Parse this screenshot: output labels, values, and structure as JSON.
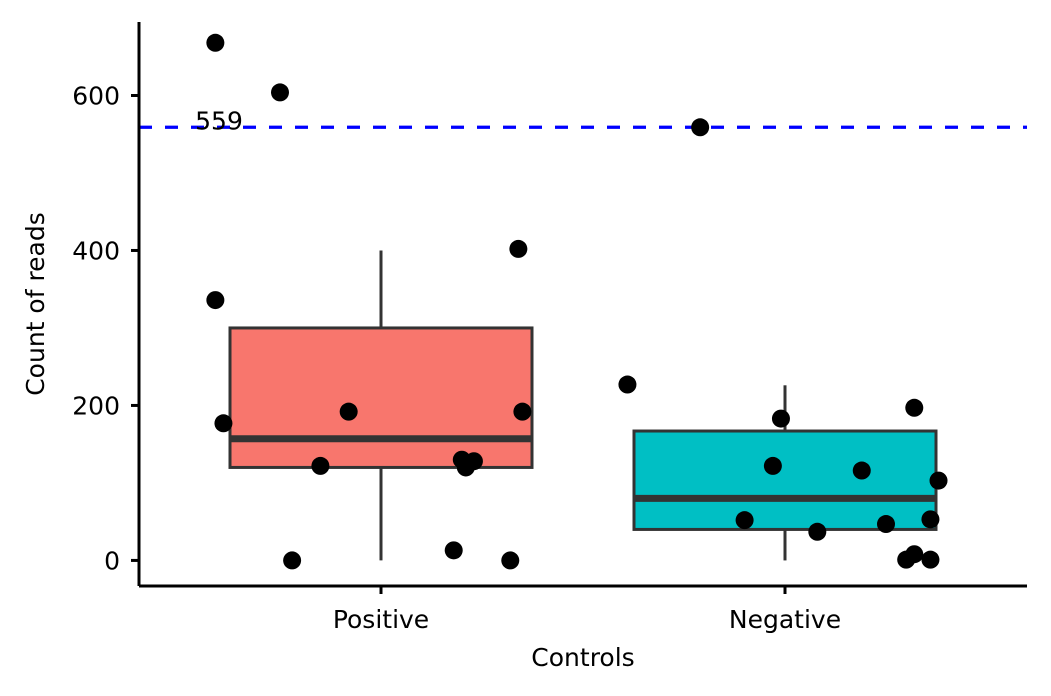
{
  "chart_data": {
    "type": "box",
    "xlabel": "Controls",
    "ylabel": "Count of reads",
    "categories": [
      "Positive",
      "Negative"
    ],
    "ylim": [
      -33,
      700
    ],
    "yticks": [
      0,
      200,
      400,
      600
    ],
    "y_tick_labels": [
      "0",
      "200",
      "400",
      "600"
    ],
    "legend": "none",
    "grid": false,
    "boxes": [
      {
        "category": "Positive",
        "fill": "#F8766D",
        "whisker_low": 0,
        "q1": 120,
        "median": 157,
        "q3": 300,
        "whisker_high": 400
      },
      {
        "category": "Negative",
        "fill": "#00BFC4",
        "whisker_low": 0,
        "q1": 40,
        "median": 80,
        "q3": 167,
        "whisker_high": 226
      }
    ],
    "points": [
      {
        "category": "Positive",
        "jitter": -0.41,
        "y": 668
      },
      {
        "category": "Positive",
        "jitter": -0.25,
        "y": 604
      },
      {
        "category": "Positive",
        "jitter": 0.34,
        "y": 402
      },
      {
        "category": "Positive",
        "jitter": -0.41,
        "y": 336
      },
      {
        "category": "Positive",
        "jitter": -0.08,
        "y": 192
      },
      {
        "category": "Positive",
        "jitter": 0.35,
        "y": 192
      },
      {
        "category": "Positive",
        "jitter": -0.39,
        "y": 177
      },
      {
        "category": "Positive",
        "jitter": 0.2,
        "y": 130
      },
      {
        "category": "Positive",
        "jitter": 0.23,
        "y": 128
      },
      {
        "category": "Positive",
        "jitter": 0.21,
        "y": 120
      },
      {
        "category": "Positive",
        "jitter": -0.15,
        "y": 122
      },
      {
        "category": "Positive",
        "jitter": 0.18,
        "y": 13
      },
      {
        "category": "Positive",
        "jitter": -0.22,
        "y": 0
      },
      {
        "category": "Positive",
        "jitter": 0.32,
        "y": 0
      },
      {
        "category": "Negative",
        "jitter": -0.21,
        "y": 559
      },
      {
        "category": "Negative",
        "jitter": -0.39,
        "y": 227
      },
      {
        "category": "Negative",
        "jitter": 0.32,
        "y": 197
      },
      {
        "category": "Negative",
        "jitter": -0.01,
        "y": 183
      },
      {
        "category": "Negative",
        "jitter": -0.03,
        "y": 122
      },
      {
        "category": "Negative",
        "jitter": 0.19,
        "y": 116
      },
      {
        "category": "Negative",
        "jitter": 0.38,
        "y": 103
      },
      {
        "category": "Negative",
        "jitter": -0.1,
        "y": 52
      },
      {
        "category": "Negative",
        "jitter": 0.36,
        "y": 53
      },
      {
        "category": "Negative",
        "jitter": 0.25,
        "y": 47
      },
      {
        "category": "Negative",
        "jitter": 0.08,
        "y": 37
      },
      {
        "category": "Negative",
        "jitter": 0.32,
        "y": 8
      },
      {
        "category": "Negative",
        "jitter": 0.3,
        "y": 1
      },
      {
        "category": "Negative",
        "jitter": 0.36,
        "y": 1
      }
    ],
    "reference_line": {
      "y": 559,
      "label": "559",
      "color": "#0000FF",
      "style": "dashed"
    },
    "colors": {
      "box_outline": "#333333",
      "points": "#000000",
      "axis": "#000000"
    }
  }
}
